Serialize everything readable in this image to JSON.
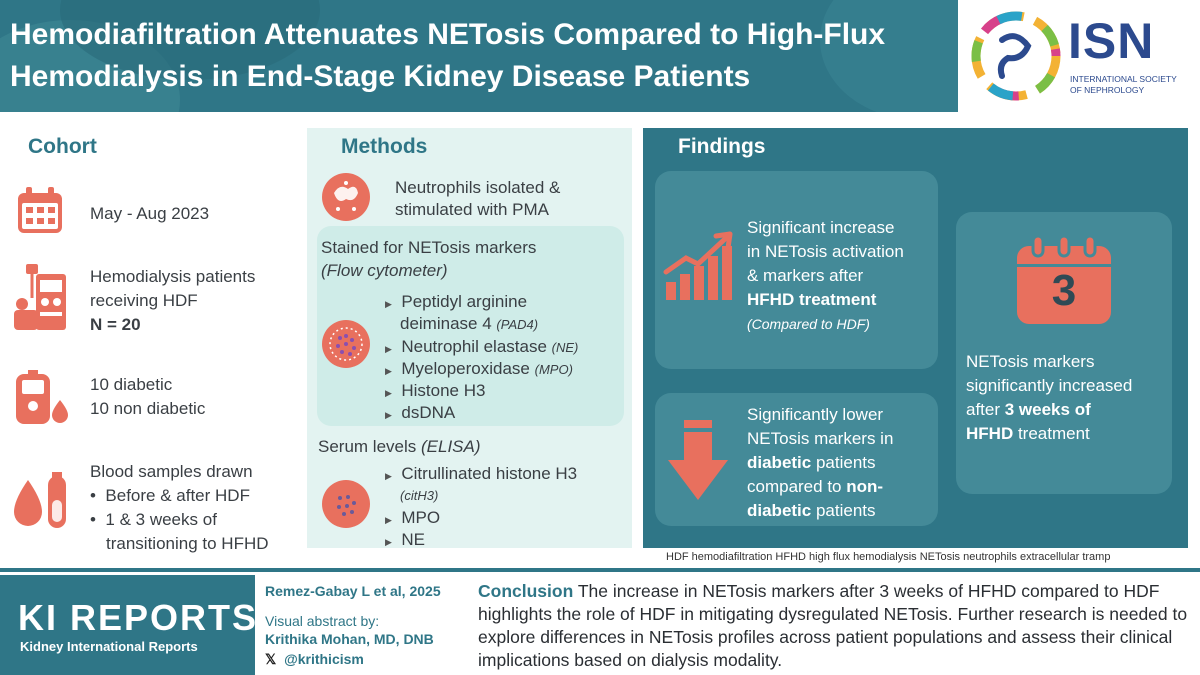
{
  "header": {
    "title": "Hemodiafiltration Attenuates NETosis Compared to High-Flux Hemodialysis in End-Stage Kidney Disease Patients",
    "isn_logo_text": "ISN",
    "isn_logo_subtitle": "INTERNATIONAL SOCIETY OF NEPHROLOGY"
  },
  "cohort": {
    "heading": "Cohort",
    "date": "May - Aug 2023",
    "patients_line1": "Hemodialysis patients",
    "patients_line2": "receiving HDF",
    "n": "N = 20",
    "diabetic": "10 diabetic",
    "non_diabetic": "10 non diabetic",
    "blood_line1": "Blood samples drawn",
    "blood_bullet1": "Before & after HDF",
    "blood_bullet2_line1": "1 & 3 weeks of",
    "blood_bullet2_line2": "transitioning to HFHD"
  },
  "methods": {
    "heading": "Methods",
    "neutrophils_line1": "Neutrophils isolated &",
    "neutrophils_line2": "stimulated with PMA",
    "stained": "Stained for NETosis markers",
    "flow": "(Flow cytometer)",
    "pad4_line1": "Peptidyl arginine",
    "pad4_line2": "deiminase 4",
    "pad4_abbr": "(PAD4)",
    "ne_name": "Neutrophil elastase",
    "ne_abbr": "(NE)",
    "mpo_name": "Myeloperoxidase",
    "mpo_abbr": "(MPO)",
    "histone": "Histone H3",
    "dsdna": "dsDNA",
    "serum": "Serum levels",
    "elisa": "(ELISA)",
    "cith3_line1": "Citrullinated histone H3",
    "cith3_abbr": "(citH3)",
    "mpo": "MPO",
    "ne": "NE"
  },
  "findings": {
    "heading": "Findings",
    "card1_line1": "Significant increase",
    "card1_line2": "in NETosis activation",
    "card1_line3": "& markers after",
    "card1_bold": "HFHD treatment",
    "card1_note": "(Compared to HDF)",
    "card2_line1": "Significantly lower",
    "card2_line2": "NETosis markers in",
    "card2_bold1": "diabetic",
    "card2_line3": " patients",
    "card2_line4a": "compared to ",
    "card2_bold2a": "non-",
    "card2_bold2b": "diabetic",
    "card2_line5": " patients",
    "card3_number": "3",
    "card3_line1": "NETosis markers",
    "card3_line2": "significantly increased",
    "card3_line3a": "after ",
    "card3_bold1": "3 weeks of",
    "card3_bold2": "HFHD",
    "card3_line4": " treatment"
  },
  "abbreviations": "HDF hemodiafiltration  HFHD high flux hemodialysis  NETosis neutrophils extracellular tramp",
  "footer": {
    "journal": "KI REPORTS",
    "journal_sub": "Kidney International Reports",
    "citation": "Remez-Gabay L et al, 2025",
    "abstract_by": "Visual abstract by:",
    "author": "Krithika Mohan, MD, DNB",
    "handle": "@krithicism",
    "x_icon": "𝕏",
    "conclusion_label": "Conclusion",
    "conclusion_text": " The increase in NETosis markers after 3 weeks of HFHD compared to HDF highlights the role of HDF in mitigating dysregulated NETosis. Further research is needed to explore differences in NETosis profiles across patient populations and assess their clinical implications based on dialysis modality."
  },
  "colors": {
    "teal": "#2f7687",
    "salmon": "#e8705e",
    "methods_bg": "#e3f3f1"
  }
}
